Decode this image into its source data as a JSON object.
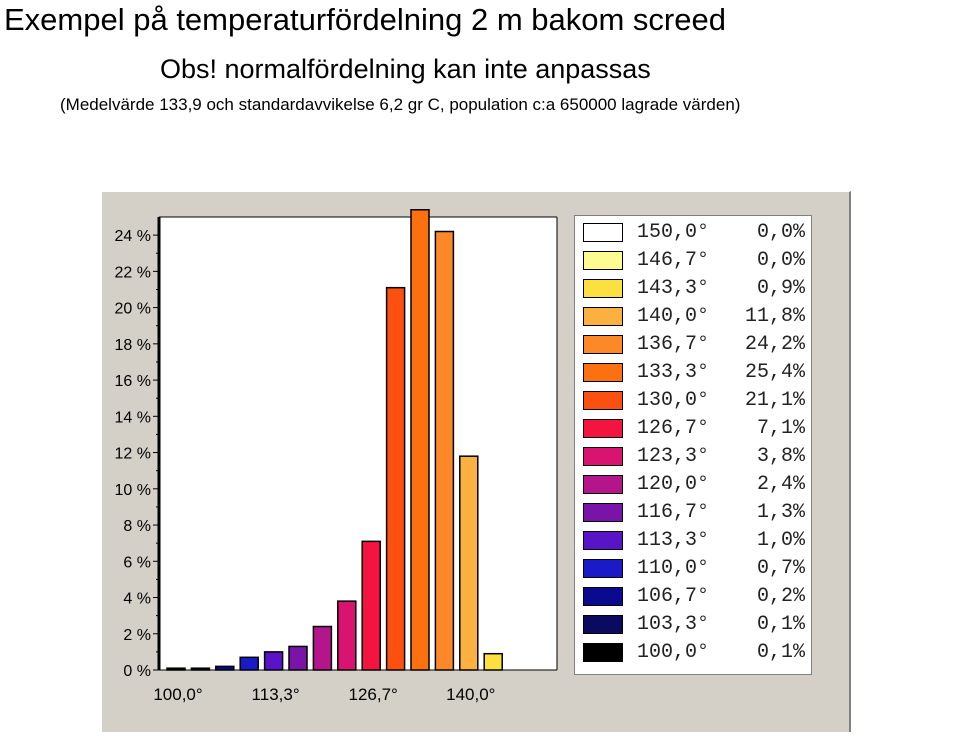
{
  "title": "Exempel på temperaturfördelning 2 m bakom screed",
  "subtitle": "Obs! normalfördelning kan inte anpassas",
  "note": "(Medelvärde 133,9 och standardavvikelse 6,2 gr C, population c:a 650000 lagrade värden)",
  "chart_data": {
    "type": "bar",
    "title": "Exempel på temperaturfördelning 2 m bakom screed",
    "subtitle": "Obs! normalfördelning kan inte anpassas",
    "xlabel": "",
    "ylabel": "",
    "ylim": [
      0,
      25
    ],
    "grid": false,
    "legend_placement": "right",
    "y_tick_labels": [
      "0 %",
      "2 %",
      "4 %",
      "6 %",
      "8 %",
      "10 %",
      "12 %",
      "14 %",
      "16 %",
      "18 %",
      "20 %",
      "22 %",
      "24 %"
    ],
    "x_tick_labels": [
      "100,0°",
      "113,3°",
      "126,7°",
      "140,0°"
    ],
    "categories": [
      "100,0°",
      "103,3°",
      "106,7°",
      "110,0°",
      "113,3°",
      "116,7°",
      "120,0°",
      "123,3°",
      "126,7°",
      "130,0°",
      "133,3°",
      "136,7°",
      "140,0°",
      "143,3°",
      "146,7°",
      "150,0°"
    ],
    "values": [
      0.1,
      0.1,
      0.2,
      0.7,
      1.0,
      1.3,
      2.4,
      3.8,
      7.1,
      21.1,
      25.4,
      24.2,
      11.8,
      0.9,
      0.0,
      0.0
    ],
    "colors": [
      "#000000",
      "#0a0a60",
      "#0a0a90",
      "#1a1ac8",
      "#5a14c8",
      "#7a14a8",
      "#b4148c",
      "#d81470",
      "#f41440",
      "#fc5010",
      "#fc7010",
      "#fc8828",
      "#fcb040",
      "#fce040",
      "#fcfc90",
      "#ffffff"
    ],
    "legend": [
      {
        "temp": "150,0°",
        "pct": "0,0%",
        "color": "#ffffff"
      },
      {
        "temp": "146,7°",
        "pct": "0,0%",
        "color": "#fcfc90"
      },
      {
        "temp": "143,3°",
        "pct": "0,9%",
        "color": "#fce040"
      },
      {
        "temp": "140,0°",
        "pct": "11,8%",
        "color": "#fcb040"
      },
      {
        "temp": "136,7°",
        "pct": "24,2%",
        "color": "#fc8828"
      },
      {
        "temp": "133,3°",
        "pct": "25,4%",
        "color": "#fc7010"
      },
      {
        "temp": "130,0°",
        "pct": "21,1%",
        "color": "#fc5010"
      },
      {
        "temp": "126,7°",
        "pct": "7,1%",
        "color": "#f41440"
      },
      {
        "temp": "123,3°",
        "pct": "3,8%",
        "color": "#d81470"
      },
      {
        "temp": "120,0°",
        "pct": "2,4%",
        "color": "#b4148c"
      },
      {
        "temp": "116,7°",
        "pct": "1,3%",
        "color": "#7a14a8"
      },
      {
        "temp": "113,3°",
        "pct": "1,0%",
        "color": "#5a14c8"
      },
      {
        "temp": "110,0°",
        "pct": "0,7%",
        "color": "#1a1ac8"
      },
      {
        "temp": "106,7°",
        "pct": "0,2%",
        "color": "#0a0a90"
      },
      {
        "temp": "103,3°",
        "pct": "0,1%",
        "color": "#0a0a60"
      },
      {
        "temp": "100,0°",
        "pct": "0,1%",
        "color": "#000000"
      }
    ]
  }
}
